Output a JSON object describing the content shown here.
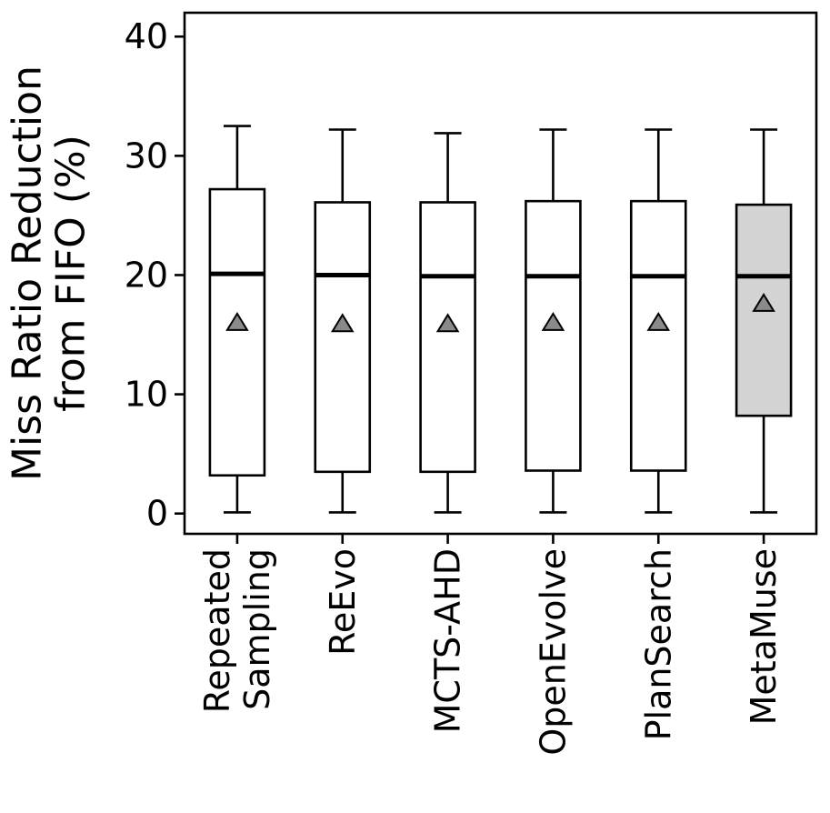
{
  "figure": {
    "background": "#ffffff"
  },
  "chart_data": {
    "type": "box",
    "title": "",
    "xlabel": "",
    "ylabel": "Miss Ratio Reduction from FIFO (%)",
    "ylabel_lines": [
      "Miss Ratio Reduction",
      "from FIFO (%)"
    ],
    "yticks": [
      0,
      10,
      20,
      30,
      40
    ],
    "ylim": [
      -1.7,
      42.0
    ],
    "grid": false,
    "legend": "none",
    "categories": [
      "Repeated Sampling",
      "ReEvo",
      "MCTS-AHD",
      "OpenEvolve",
      "PlanSearch",
      "MetaMuse"
    ],
    "category_label_lines": [
      [
        "Repeated",
        "Sampling"
      ],
      [
        "ReEvo"
      ],
      [
        "MCTS-AHD"
      ],
      [
        "OpenEvolve"
      ],
      [
        "PlanSearch"
      ],
      [
        "MetaMuse"
      ]
    ],
    "boxes": [
      {
        "name": "Repeated Sampling",
        "whisker_low": 0.1,
        "q1": 3.2,
        "median": 20.1,
        "q3": 27.2,
        "whisker_high": 32.5,
        "mean": 16.0,
        "filled": false
      },
      {
        "name": "ReEvo",
        "whisker_low": 0.1,
        "q1": 3.5,
        "median": 20.0,
        "q3": 26.1,
        "whisker_high": 32.2,
        "mean": 15.9,
        "filled": false
      },
      {
        "name": "MCTS-AHD",
        "whisker_low": 0.1,
        "q1": 3.5,
        "median": 19.9,
        "q3": 26.1,
        "whisker_high": 31.9,
        "mean": 15.9,
        "filled": false
      },
      {
        "name": "OpenEvolve",
        "whisker_low": 0.1,
        "q1": 3.6,
        "median": 19.9,
        "q3": 26.2,
        "whisker_high": 32.2,
        "mean": 16.0,
        "filled": false
      },
      {
        "name": "PlanSearch",
        "whisker_low": 0.1,
        "q1": 3.6,
        "median": 19.9,
        "q3": 26.2,
        "whisker_high": 32.2,
        "mean": 16.0,
        "filled": false
      },
      {
        "name": "MetaMuse",
        "whisker_low": 0.1,
        "q1": 8.2,
        "median": 19.9,
        "q3": 25.9,
        "whisker_high": 32.2,
        "mean": 17.6,
        "filled": true
      }
    ],
    "mean_marker": "triangle-up",
    "colors": {
      "line": "#000000",
      "box_fill": "#ffffff",
      "highlight_fill": "#d3d3d3",
      "mean_marker_fill": "#8a8a8a",
      "background": "#ffffff"
    }
  }
}
